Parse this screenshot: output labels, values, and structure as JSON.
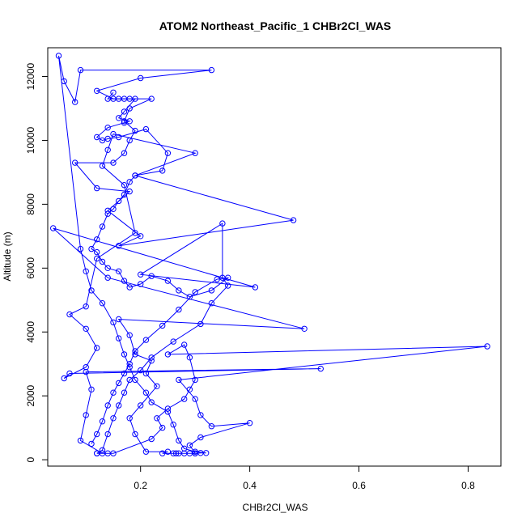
{
  "chart_data": {
    "type": "line",
    "title": "ATOM2 Northeast_Pacific_1 CHBr2Cl_WAS",
    "xlabel": "CHBr2Cl_WAS",
    "ylabel": "Altitude (m)",
    "xlim": [
      0.03,
      0.86
    ],
    "ylim": [
      -200,
      12900
    ],
    "x_ticks": [
      0.2,
      0.4,
      0.6,
      0.8
    ],
    "x_tick_labels": [
      "0.2",
      "0.4",
      "0.6",
      "0.8"
    ],
    "y_ticks": [
      0,
      2000,
      4000,
      6000,
      8000,
      10000,
      12000
    ],
    "y_tick_labels": [
      "0",
      "2000",
      "4000",
      "6000",
      "8000",
      "10000",
      "12000"
    ],
    "grid": false,
    "legend": "none",
    "markers": "open-circle",
    "color": "#0000ff",
    "series": [
      {
        "points": [
          [
            0.265,
            200
          ],
          [
            0.27,
            200
          ],
          [
            0.26,
            200
          ],
          [
            0.28,
            200
          ],
          [
            0.29,
            200
          ],
          [
            0.3,
            200
          ],
          [
            0.31,
            210
          ],
          [
            0.32,
            210
          ],
          [
            0.3,
            250
          ],
          [
            0.28,
            350
          ],
          [
            0.27,
            600
          ],
          [
            0.26,
            1100
          ],
          [
            0.25,
            1500
          ],
          [
            0.22,
            1800
          ],
          [
            0.21,
            2100
          ],
          [
            0.19,
            2500
          ],
          [
            0.18,
            2900
          ],
          [
            0.17,
            3300
          ],
          [
            0.16,
            3800
          ],
          [
            0.15,
            4300
          ],
          [
            0.13,
            4900
          ],
          [
            0.11,
            5300
          ],
          [
            0.1,
            5900
          ],
          [
            0.09,
            6600
          ],
          [
            0.05,
            12650
          ],
          [
            0.06,
            11850
          ],
          [
            0.08,
            11200
          ],
          [
            0.09,
            12200
          ],
          [
            0.33,
            12200
          ],
          [
            0.2,
            11950
          ],
          [
            0.12,
            11550
          ],
          [
            0.15,
            11300
          ],
          [
            0.22,
            11300
          ],
          [
            0.18,
            11000
          ],
          [
            0.17,
            10600
          ],
          [
            0.19,
            10300
          ],
          [
            0.18,
            10000
          ],
          [
            0.17,
            9600
          ],
          [
            0.15,
            9300
          ],
          [
            0.08,
            9300
          ],
          [
            0.12,
            8500
          ],
          [
            0.18,
            8400
          ],
          [
            0.14,
            7800
          ],
          [
            0.2,
            7000
          ],
          [
            0.16,
            6700
          ],
          [
            0.48,
            7500
          ],
          [
            0.19,
            8900
          ],
          [
            0.3,
            9600
          ],
          [
            0.15,
            10200
          ],
          [
            0.14,
            9700
          ],
          [
            0.13,
            9200
          ],
          [
            0.17,
            8600
          ],
          [
            0.19,
            7100
          ],
          [
            0.12,
            6300
          ],
          [
            0.1,
            4800
          ],
          [
            0.07,
            4550
          ],
          [
            0.1,
            4100
          ],
          [
            0.12,
            3500
          ],
          [
            0.1,
            2900
          ],
          [
            0.06,
            2550
          ],
          [
            0.07,
            2700
          ],
          [
            0.53,
            2850
          ],
          [
            0.1,
            2750
          ],
          [
            0.11,
            2200
          ],
          [
            0.1,
            1400
          ],
          [
            0.09,
            600
          ],
          [
            0.13,
            200
          ],
          [
            0.12,
            200
          ],
          [
            0.14,
            200
          ],
          [
            0.15,
            200
          ],
          [
            0.22,
            650
          ],
          [
            0.24,
            1000
          ],
          [
            0.23,
            1300
          ],
          [
            0.25,
            1600
          ],
          [
            0.28,
            1900
          ],
          [
            0.29,
            2200
          ],
          [
            0.3,
            2500
          ],
          [
            0.29,
            3200
          ],
          [
            0.28,
            3600
          ],
          [
            0.25,
            3300
          ],
          [
            0.835,
            3550
          ],
          [
            0.27,
            2500
          ],
          [
            0.3,
            1900
          ],
          [
            0.31,
            1400
          ],
          [
            0.33,
            1050
          ],
          [
            0.4,
            1150
          ],
          [
            0.31,
            700
          ],
          [
            0.29,
            450
          ],
          [
            0.3,
            200
          ],
          [
            0.24,
            200
          ],
          [
            0.25,
            250
          ],
          [
            0.21,
            250
          ],
          [
            0.19,
            800
          ],
          [
            0.18,
            1300
          ],
          [
            0.2,
            1700
          ],
          [
            0.23,
            2300
          ],
          [
            0.21,
            2700
          ],
          [
            0.22,
            3100
          ],
          [
            0.19,
            3300
          ],
          [
            0.18,
            3900
          ],
          [
            0.16,
            4400
          ],
          [
            0.5,
            4100
          ],
          [
            0.14,
            5700
          ],
          [
            0.04,
            7250
          ],
          [
            0.41,
            5400
          ],
          [
            0.2,
            5800
          ],
          [
            0.35,
            7400
          ],
          [
            0.35,
            5700
          ],
          [
            0.36,
            5450
          ],
          [
            0.33,
            4900
          ],
          [
            0.31,
            4250
          ],
          [
            0.26,
            3700
          ],
          [
            0.22,
            3200
          ],
          [
            0.2,
            2800
          ],
          [
            0.18,
            2500
          ],
          [
            0.17,
            2100
          ],
          [
            0.16,
            1700
          ],
          [
            0.15,
            1300
          ],
          [
            0.14,
            800
          ],
          [
            0.13,
            300
          ],
          [
            0.12,
            200
          ]
        ]
      },
      {
        "points": [
          [
            0.15,
            11500
          ],
          [
            0.14,
            11300
          ],
          [
            0.16,
            11300
          ],
          [
            0.17,
            11300
          ],
          [
            0.18,
            11300
          ],
          [
            0.19,
            11300
          ],
          [
            0.17,
            10900
          ],
          [
            0.16,
            10700
          ],
          [
            0.18,
            10600
          ],
          [
            0.17,
            10550
          ],
          [
            0.14,
            10400
          ],
          [
            0.12,
            10100
          ],
          [
            0.13,
            10000
          ],
          [
            0.14,
            10050
          ],
          [
            0.16,
            10100
          ],
          [
            0.21,
            10350
          ],
          [
            0.25,
            9600
          ],
          [
            0.24,
            9050
          ],
          [
            0.19,
            8900
          ],
          [
            0.18,
            8700
          ],
          [
            0.17,
            8300
          ],
          [
            0.16,
            8100
          ],
          [
            0.15,
            7850
          ],
          [
            0.14,
            7700
          ],
          [
            0.13,
            7300
          ],
          [
            0.12,
            6900
          ],
          [
            0.11,
            6600
          ],
          [
            0.12,
            6500
          ],
          [
            0.13,
            6200
          ],
          [
            0.14,
            6000
          ],
          [
            0.16,
            5900
          ],
          [
            0.17,
            5600
          ],
          [
            0.18,
            5400
          ],
          [
            0.2,
            5500
          ],
          [
            0.22,
            5750
          ],
          [
            0.25,
            5600
          ],
          [
            0.27,
            5300
          ],
          [
            0.29,
            5100
          ],
          [
            0.33,
            5300
          ],
          [
            0.36,
            5700
          ],
          [
            0.34,
            5650
          ],
          [
            0.3,
            5250
          ],
          [
            0.27,
            4700
          ],
          [
            0.24,
            4200
          ],
          [
            0.21,
            3750
          ],
          [
            0.19,
            3400
          ],
          [
            0.18,
            3000
          ],
          [
            0.17,
            2700
          ],
          [
            0.16,
            2400
          ],
          [
            0.15,
            2100
          ],
          [
            0.14,
            1700
          ],
          [
            0.13,
            1200
          ],
          [
            0.12,
            800
          ],
          [
            0.11,
            500
          ]
        ]
      }
    ]
  }
}
